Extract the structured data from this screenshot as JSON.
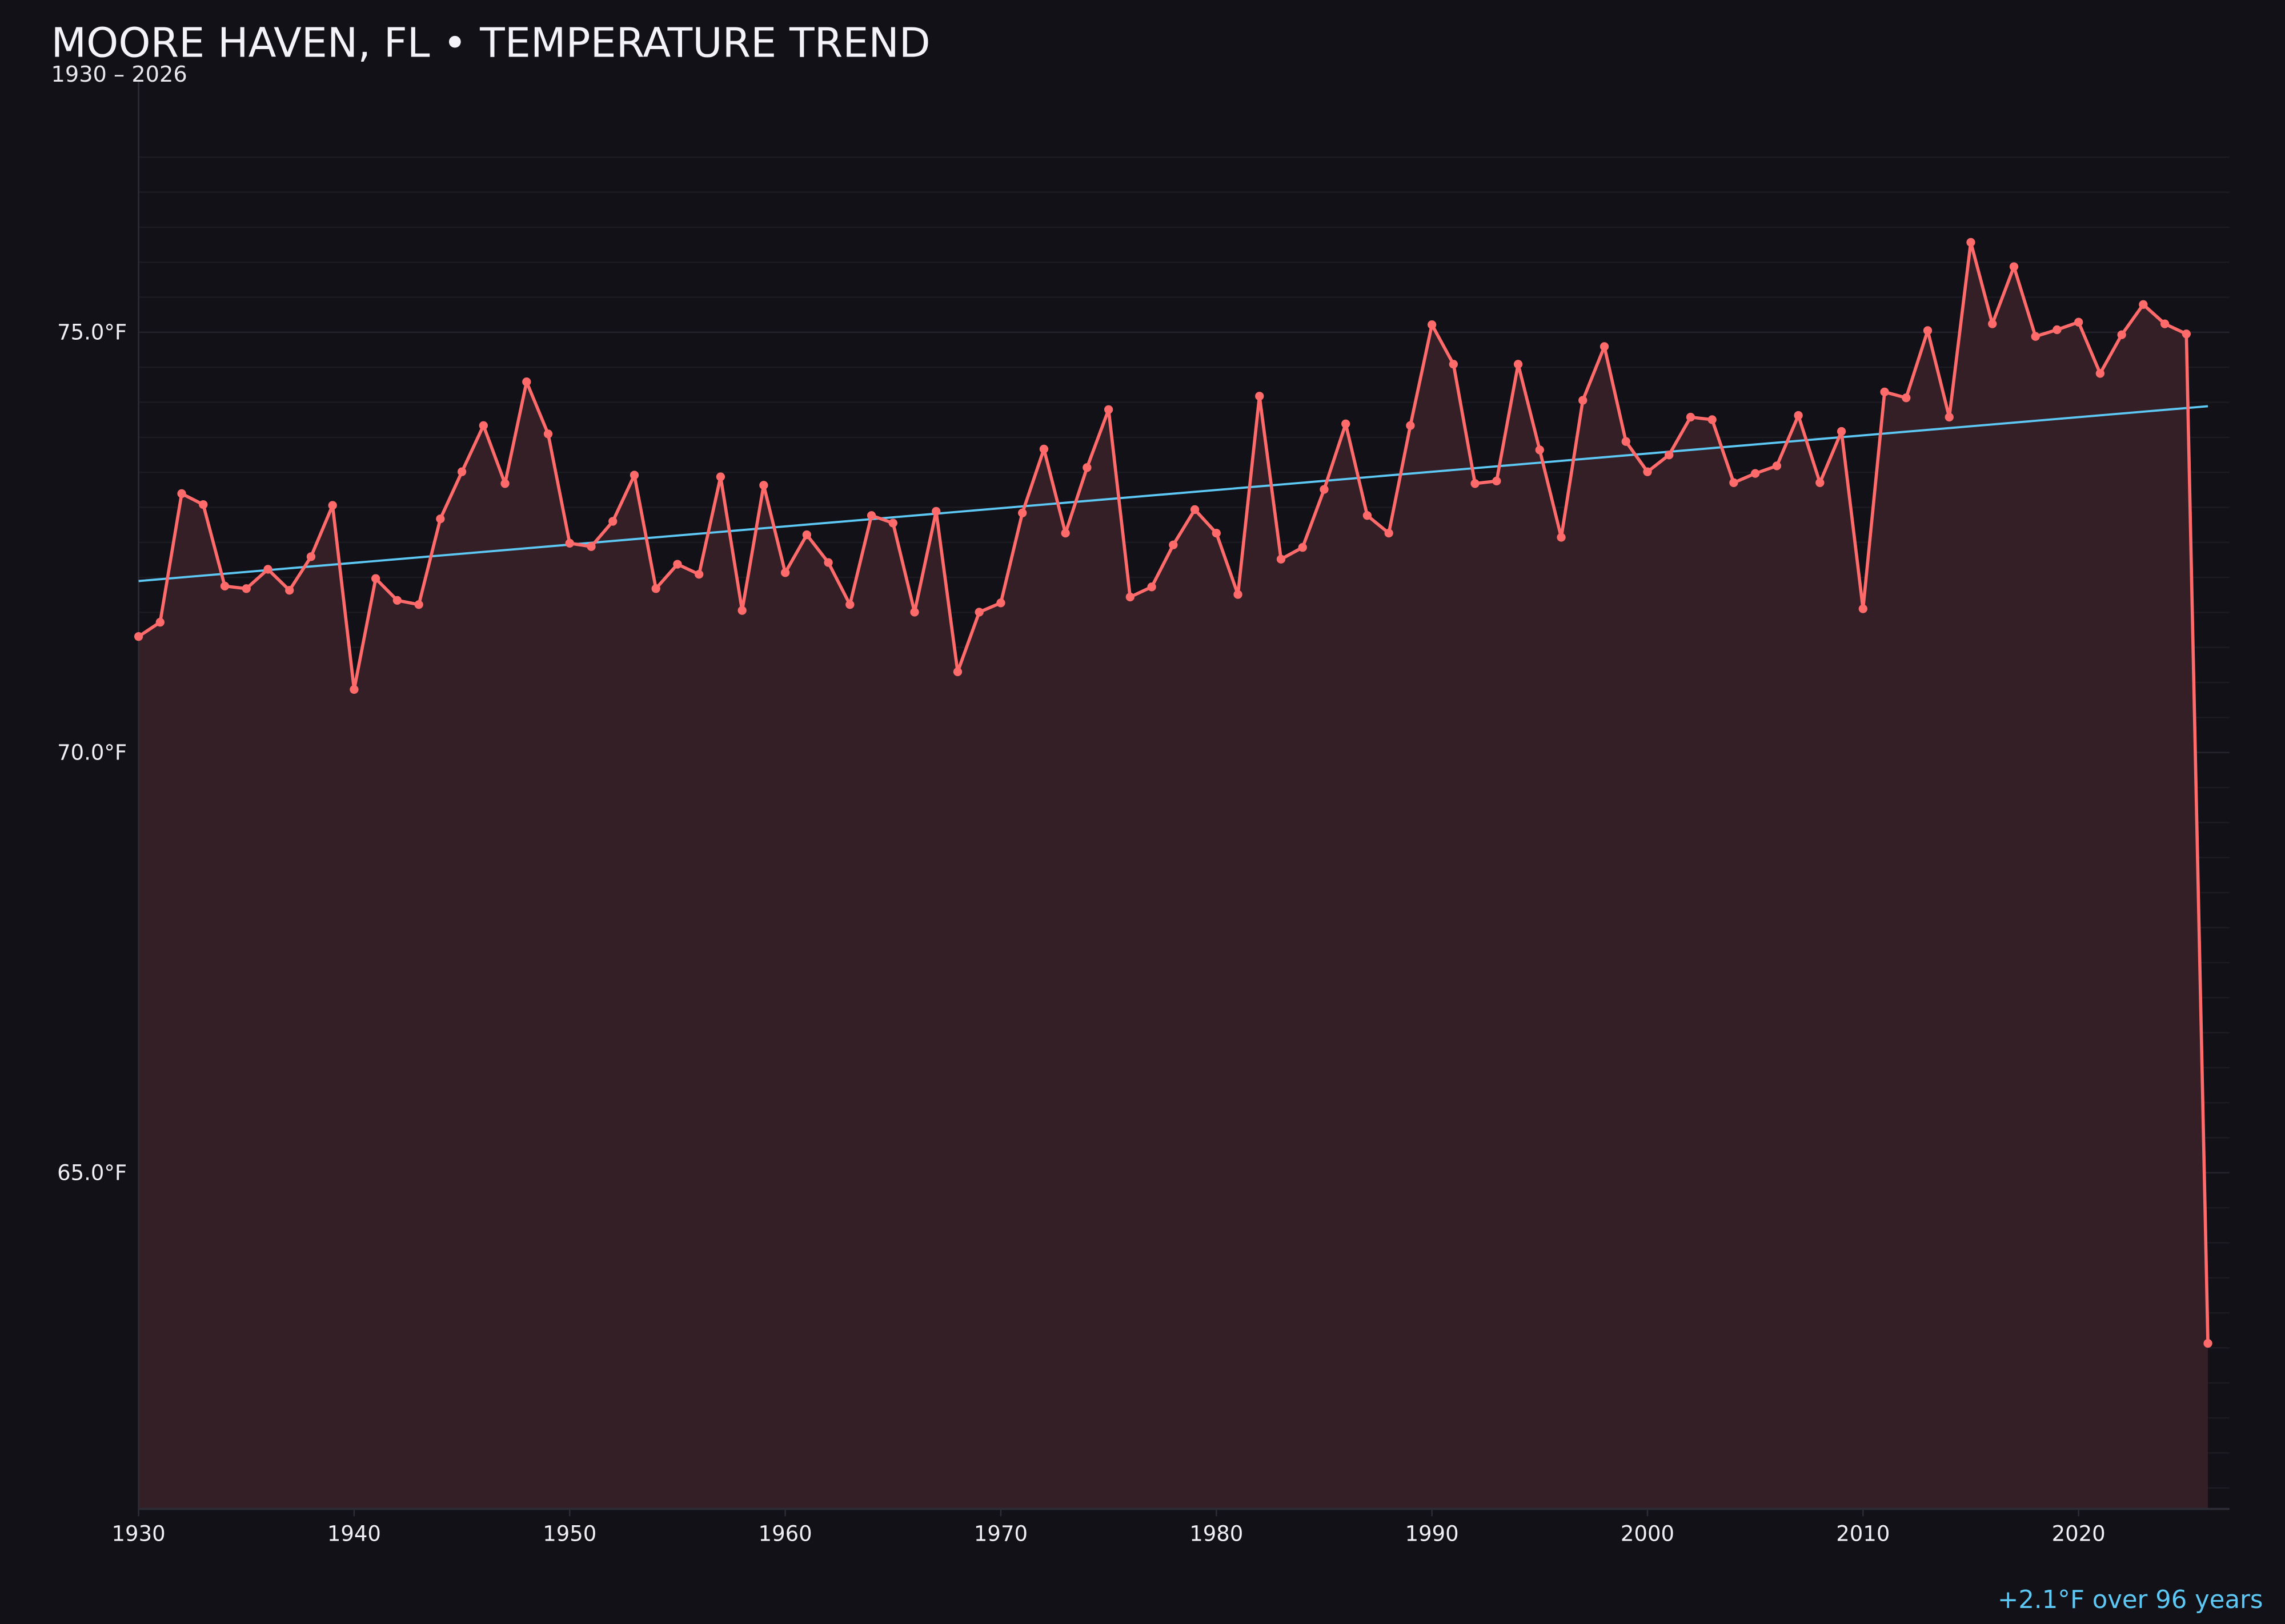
{
  "chart_data": {
    "type": "line",
    "title": "MOORE HAVEN, FL • TEMPERATURE TREND",
    "subtitle": "1930 – 2026",
    "xlabel": "",
    "ylabel": "",
    "xlim": [
      1930,
      2027
    ],
    "ylim": [
      61,
      78
    ],
    "x_ticks": [
      "1930",
      "1940",
      "1950",
      "1960",
      "1970",
      "1980",
      "1990",
      "2000",
      "2010",
      "2020"
    ],
    "y_ticks": [
      {
        "value": 65,
        "label": "65.0°F"
      },
      {
        "value": 70,
        "label": "70.0°F"
      },
      {
        "value": 75,
        "label": "75.0°F"
      }
    ],
    "grid": true,
    "annotation": "+2.1°F over 96 years",
    "colors": {
      "background": "#121117",
      "line": "#ff6b6b",
      "fill": "#351f26",
      "trend": "#5ec8f5",
      "text": "#f0f0f4"
    },
    "series": [
      {
        "x": [
          1930,
          1931,
          1932,
          1933,
          1934,
          1935,
          1936,
          1937,
          1938,
          1939,
          1940,
          1941,
          1942,
          1943,
          1944,
          1945,
          1946,
          1947,
          1948,
          1949,
          1950,
          1951,
          1952,
          1953,
          1954,
          1955,
          1956,
          1957,
          1958,
          1959,
          1960,
          1961,
          1962,
          1963,
          1964,
          1965,
          1966,
          1967,
          1968,
          1969,
          1970,
          1971,
          1972,
          1973,
          1974,
          1975,
          1976,
          1977,
          1978,
          1979,
          1980,
          1981,
          1982,
          1983,
          1984,
          1985,
          1986,
          1987,
          1988,
          1989,
          1990,
          1991,
          1992,
          1993,
          1994,
          1995,
          1996,
          1997,
          1998,
          1999,
          2000,
          2001,
          2002,
          2003,
          2004,
          2005,
          2006,
          2007,
          2008,
          2009,
          2010,
          2011,
          2012,
          2013,
          2014,
          2015,
          2016,
          2017,
          2018,
          2019,
          2020,
          2021,
          2022,
          2023,
          2024,
          2025,
          2026
        ],
        "values": [
          71.38,
          71.55,
          73.08,
          72.95,
          71.98,
          71.95,
          72.18,
          71.93,
          72.33,
          72.94,
          70.75,
          72.07,
          71.81,
          71.76,
          72.78,
          73.34,
          73.89,
          73.2,
          74.41,
          73.79,
          72.49,
          72.45,
          72.75,
          73.3,
          71.95,
          72.24,
          72.12,
          73.28,
          71.69,
          73.18,
          72.14,
          72.59,
          72.26,
          71.76,
          72.82,
          72.73,
          71.67,
          72.87,
          70.96,
          71.67,
          71.78,
          72.85,
          73.61,
          72.61,
          73.39,
          74.08,
          71.85,
          71.97,
          72.47,
          72.89,
          72.61,
          71.88,
          74.24,
          72.3,
          72.44,
          73.13,
          73.91,
          72.82,
          72.61,
          73.89,
          75.09,
          74.62,
          73.2,
          73.23,
          74.62,
          73.6,
          72.56,
          74.19,
          74.83,
          73.7,
          73.34,
          73.54,
          73.99,
          73.96,
          73.21,
          73.32,
          73.41,
          74.01,
          73.21,
          73.82,
          71.71,
          74.29,
          74.22,
          75.02,
          73.99,
          76.07,
          75.1,
          75.78,
          74.95,
          75.03,
          75.12,
          74.51,
          74.97,
          75.33,
          75.1,
          74.98,
          62.97
        ]
      }
    ],
    "trend": {
      "x": [
        1930,
        2026
      ],
      "values": [
        72.04,
        74.12
      ]
    }
  }
}
